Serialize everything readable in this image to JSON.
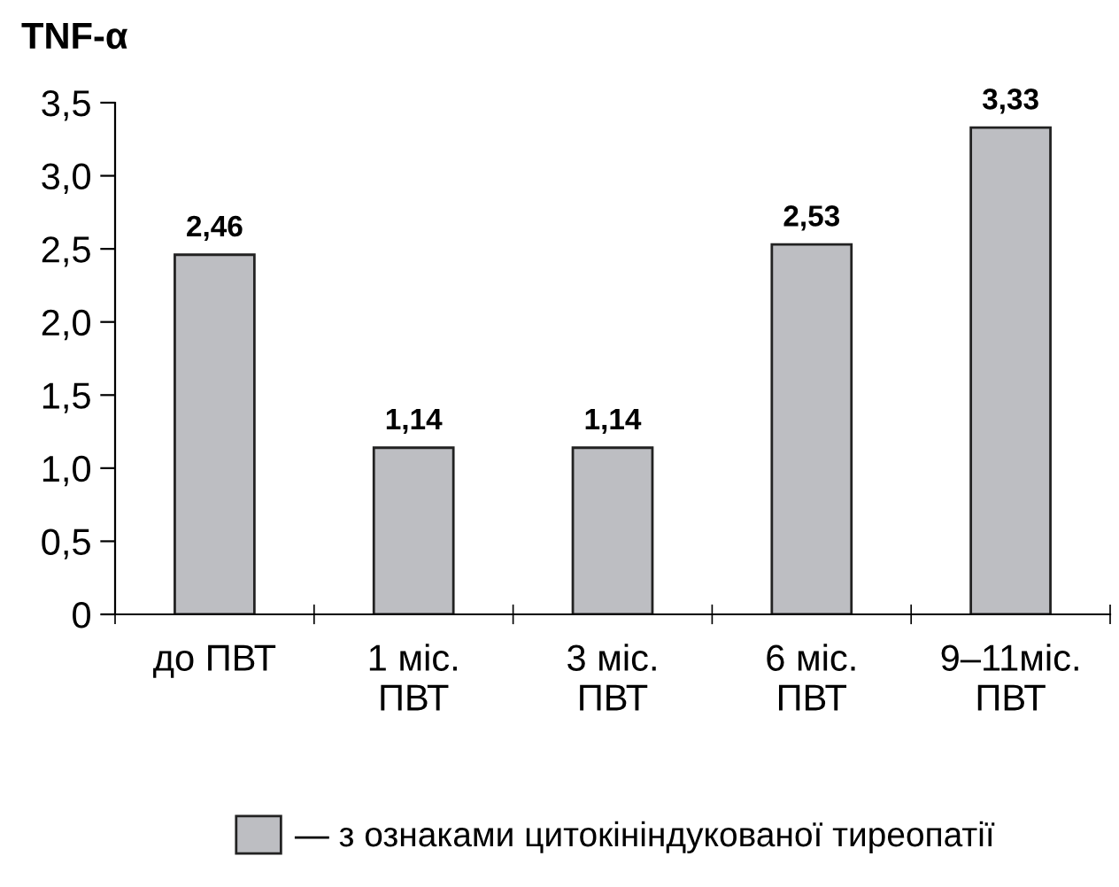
{
  "chart_data": {
    "type": "bar",
    "ylabel": "TNF-α",
    "categories": [
      "до ПВТ",
      "1 міс.\nПВТ",
      "3 міс.\nПВТ",
      "6 міс.\nПВТ",
      "9–11міс.\nПВТ"
    ],
    "series": [
      {
        "name": "— з ознаками цитокініндукованої тиреопатії",
        "color": "#bdbec2",
        "values": [
          2.46,
          1.14,
          1.14,
          2.53,
          3.33
        ],
        "value_labels": [
          "2,46",
          "1,14",
          "1,14",
          "2,53",
          "3,33"
        ]
      }
    ],
    "ylim": [
      0,
      3.5
    ],
    "yticks": [
      0,
      {
        "value": 0.5,
        "label": "0,5"
      },
      {
        "value": 1.0,
        "label": "1,0"
      },
      {
        "value": 1.5,
        "label": "1,5"
      },
      {
        "value": 2.0,
        "label": "2,0"
      },
      {
        "value": 2.5,
        "label": "2,5"
      },
      {
        "value": 3.0,
        "label": "3,0"
      },
      {
        "value": 3.5,
        "label": "3,5"
      }
    ],
    "grid": false,
    "legend": "bottom"
  }
}
